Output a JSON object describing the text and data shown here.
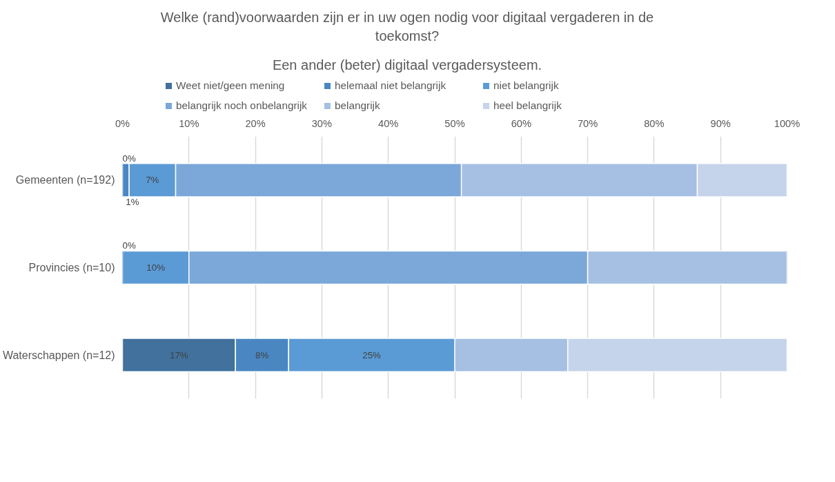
{
  "chart_data": {
    "type": "bar",
    "orientation": "horizontal",
    "stacked": true,
    "title": "Welke (rand)voorwaarden zijn er in uw ogen nodig voor digitaal vergaderen in de toekomst?",
    "subtitle": "Een ander (beter) digitaal vergadersysteem.",
    "categories": [
      "Gemeenten (n=192)",
      "Provincies (n=10)",
      "Waterschappen (n=12)"
    ],
    "series": [
      {
        "name": "Weet niet/geen mening",
        "color": "#41719c",
        "values": [
          0,
          0,
          17
        ],
        "value_labels": [
          "0%",
          "0%",
          "17%"
        ]
      },
      {
        "name": "helemaal niet belangrijk",
        "color": "#4a87c2",
        "values": [
          1,
          0,
          8
        ],
        "value_labels": [
          "1%",
          null,
          "8%"
        ]
      },
      {
        "name": "niet belangrijk",
        "color": "#5b9bd5",
        "values": [
          7,
          10,
          25
        ],
        "value_labels": [
          "7%",
          "10%",
          "25%"
        ]
      },
      {
        "name": "belangrijk noch onbelangrijk",
        "color": "#7ba7d9",
        "values": [
          43,
          60,
          0
        ],
        "value_labels": [
          null,
          null,
          null
        ]
      },
      {
        "name": "belangrijk",
        "color": "#a5c0e3",
        "values": [
          35.5,
          30,
          17
        ],
        "value_labels": [
          null,
          null,
          null
        ]
      },
      {
        "name": "heel belangrijk",
        "color": "#c5d4ea",
        "values": [
          13.5,
          0,
          33
        ],
        "value_labels": [
          null,
          null,
          null
        ]
      }
    ],
    "xlim": [
      0,
      100
    ],
    "xticks": [
      {
        "value": 0,
        "label": "0%"
      },
      {
        "value": 10,
        "label": "10%"
      },
      {
        "value": 20,
        "label": "20%"
      },
      {
        "value": 30,
        "label": "30%"
      },
      {
        "value": 40,
        "label": "40%"
      },
      {
        "value": 50,
        "label": "50%"
      },
      {
        "value": 60,
        "label": "60%"
      },
      {
        "value": 70,
        "label": "70%"
      },
      {
        "value": 80,
        "label": "80%"
      },
      {
        "value": 90,
        "label": "90%"
      },
      {
        "value": 100,
        "label": "100%"
      }
    ],
    "grid": "x",
    "legend": "top"
  }
}
